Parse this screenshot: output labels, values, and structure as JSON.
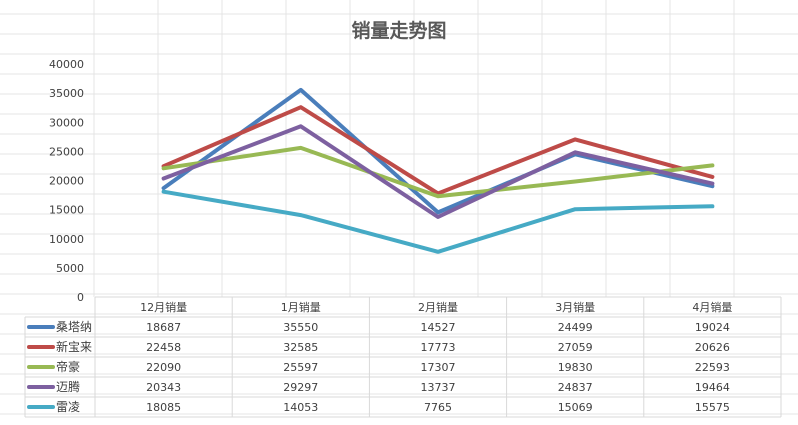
{
  "chart_data": {
    "type": "line",
    "title": "销量走势图",
    "categories": [
      "12月销量",
      "1月销量",
      "2月销量",
      "3月销量",
      "4月销量"
    ],
    "ylim": [
      0,
      40000
    ],
    "yticks": [
      "40000",
      "35000",
      "30000",
      "25000",
      "20000",
      "15000",
      "10000",
      "5000",
      "0"
    ],
    "legend_position": "data-table-left",
    "grid": false,
    "series": [
      {
        "name": "桑塔纳",
        "color": "#4a7ebb",
        "values": [
          18687,
          35550,
          14527,
          24499,
          19024
        ]
      },
      {
        "name": "新宝来",
        "color": "#be4b48",
        "values": [
          22458,
          32585,
          17773,
          27059,
          20626
        ]
      },
      {
        "name": "帝豪",
        "color": "#98b954",
        "values": [
          22090,
          25597,
          17307,
          19830,
          22593
        ]
      },
      {
        "name": "迈腾",
        "color": "#7d60a0",
        "values": [
          20343,
          29297,
          13737,
          24837,
          19464
        ]
      },
      {
        "name": "雷凌",
        "color": "#46aac5",
        "values": [
          18085,
          14053,
          7765,
          15069,
          15575
        ]
      }
    ]
  }
}
